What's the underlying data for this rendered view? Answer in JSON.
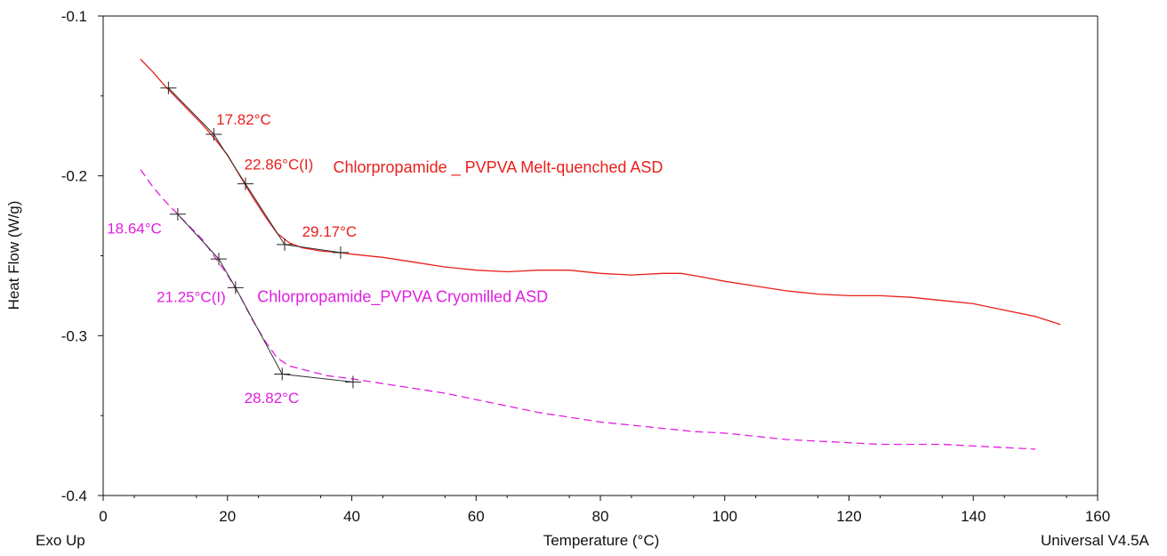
{
  "chart_data": {
    "type": "line",
    "xlabel": "Temperature (°C)",
    "ylabel": "Heat Flow (W/g)",
    "xlim": [
      0,
      160
    ],
    "ylim": [
      -0.4,
      -0.1
    ],
    "x_ticks": [
      "0",
      "20",
      "40",
      "60",
      "80",
      "100",
      "120",
      "140",
      "160"
    ],
    "y_ticks": [
      "-0.1",
      "-0.2",
      "-0.3",
      "-0.4"
    ],
    "footer_left": "Exo Up",
    "footer_right": "Universal V4.5A",
    "grid": false,
    "series": [
      {
        "name": "Chlorpropamide _ PVPVA Melt-quenched ASD",
        "color": "#e8201b",
        "style": "solid",
        "points": [
          [
            6,
            -0.127
          ],
          [
            8,
            -0.135
          ],
          [
            10,
            -0.144
          ],
          [
            12,
            -0.152
          ],
          [
            14,
            -0.16
          ],
          [
            16,
            -0.168
          ],
          [
            18,
            -0.177
          ],
          [
            20,
            -0.187
          ],
          [
            22,
            -0.2
          ],
          [
            24,
            -0.213
          ],
          [
            26,
            -0.225
          ],
          [
            28,
            -0.236
          ],
          [
            30,
            -0.242
          ],
          [
            32,
            -0.245
          ],
          [
            35,
            -0.247
          ],
          [
            38,
            -0.248
          ],
          [
            40,
            -0.249
          ],
          [
            45,
            -0.251
          ],
          [
            50,
            -0.254
          ],
          [
            55,
            -0.257
          ],
          [
            60,
            -0.259
          ],
          [
            65,
            -0.26
          ],
          [
            70,
            -0.259
          ],
          [
            75,
            -0.259
          ],
          [
            80,
            -0.261
          ],
          [
            85,
            -0.262
          ],
          [
            90,
            -0.261
          ],
          [
            93,
            -0.261
          ],
          [
            96,
            -0.263
          ],
          [
            100,
            -0.266
          ],
          [
            105,
            -0.269
          ],
          [
            110,
            -0.272
          ],
          [
            115,
            -0.274
          ],
          [
            120,
            -0.275
          ],
          [
            125,
            -0.275
          ],
          [
            130,
            -0.276
          ],
          [
            135,
            -0.278
          ],
          [
            140,
            -0.28
          ],
          [
            145,
            -0.284
          ],
          [
            150,
            -0.288
          ],
          [
            154,
            -0.293
          ]
        ]
      },
      {
        "name": "Chlorpropamide_PVPVA Cryomilled ASD",
        "color": "#e020e0",
        "style": "dashed",
        "points": [
          [
            6,
            -0.196
          ],
          [
            8,
            -0.207
          ],
          [
            10,
            -0.216
          ],
          [
            12,
            -0.224
          ],
          [
            14,
            -0.232
          ],
          [
            16,
            -0.24
          ],
          [
            18,
            -0.251
          ],
          [
            20,
            -0.262
          ],
          [
            22,
            -0.275
          ],
          [
            24,
            -0.29
          ],
          [
            26,
            -0.303
          ],
          [
            28,
            -0.314
          ],
          [
            30,
            -0.319
          ],
          [
            33,
            -0.322
          ],
          [
            36,
            -0.325
          ],
          [
            40,
            -0.327
          ],
          [
            45,
            -0.33
          ],
          [
            50,
            -0.333
          ],
          [
            55,
            -0.336
          ],
          [
            60,
            -0.34
          ],
          [
            65,
            -0.344
          ],
          [
            70,
            -0.348
          ],
          [
            75,
            -0.351
          ],
          [
            80,
            -0.354
          ],
          [
            85,
            -0.356
          ],
          [
            90,
            -0.358
          ],
          [
            95,
            -0.36
          ],
          [
            100,
            -0.361
          ],
          [
            105,
            -0.363
          ],
          [
            110,
            -0.365
          ],
          [
            115,
            -0.366
          ],
          [
            120,
            -0.367
          ],
          [
            125,
            -0.368
          ],
          [
            130,
            -0.368
          ],
          [
            135,
            -0.368
          ],
          [
            140,
            -0.369
          ],
          [
            145,
            -0.37
          ],
          [
            150,
            -0.371
          ]
        ]
      }
    ],
    "tangent_lines": [
      {
        "color": "#333333",
        "points": [
          [
            10.5,
            -0.145
          ],
          [
            17.8,
            -0.174
          ],
          [
            22.9,
            -0.205
          ],
          [
            29.2,
            -0.243
          ],
          [
            38.2,
            -0.248
          ]
        ]
      },
      {
        "color": "#333333",
        "points": [
          [
            12,
            -0.224
          ],
          [
            18.6,
            -0.252
          ],
          [
            21.3,
            -0.27
          ],
          [
            28.8,
            -0.324
          ],
          [
            40.2,
            -0.329
          ]
        ]
      }
    ],
    "markers": [
      {
        "x": 10.5,
        "y": -0.145
      },
      {
        "x": 17.8,
        "y": -0.174
      },
      {
        "x": 22.9,
        "y": -0.205
      },
      {
        "x": 29.2,
        "y": -0.243
      },
      {
        "x": 38.2,
        "y": -0.248
      },
      {
        "x": 12,
        "y": -0.224
      },
      {
        "x": 18.6,
        "y": -0.252
      },
      {
        "x": 21.3,
        "y": -0.27
      },
      {
        "x": 28.8,
        "y": -0.324
      },
      {
        "x": 40.2,
        "y": -0.329
      }
    ],
    "annotations": [
      {
        "text": "17.82°C",
        "x": 18.2,
        "y": -0.168,
        "color": "#e8201b",
        "cls": "annot"
      },
      {
        "text": "22.86°C(I)",
        "x": 22.7,
        "y": -0.196,
        "color": "#e8201b",
        "cls": "annot"
      },
      {
        "text": "Chlorpropamide _ PVPVA Melt-quenched ASD",
        "x": 37.0,
        "y": -0.198,
        "color": "#e8201b",
        "cls": "series-label"
      },
      {
        "text": "29.17°C",
        "x": 32.0,
        "y": -0.238,
        "color": "#e8201b",
        "cls": "annot"
      },
      {
        "text": "18.64°C",
        "x": 0.6,
        "y": -0.236,
        "color": "#e020e0",
        "cls": "annot"
      },
      {
        "text": "21.25°C(I)",
        "x": 8.6,
        "y": -0.279,
        "color": "#e020e0",
        "cls": "annot"
      },
      {
        "text": "Chlorpropamide_PVPVA Cryomilled ASD",
        "x": 24.8,
        "y": -0.279,
        "color": "#e020e0",
        "cls": "series-label"
      },
      {
        "text": "28.82°C",
        "x": 22.7,
        "y": -0.342,
        "color": "#e020e0",
        "cls": "annot"
      }
    ]
  }
}
